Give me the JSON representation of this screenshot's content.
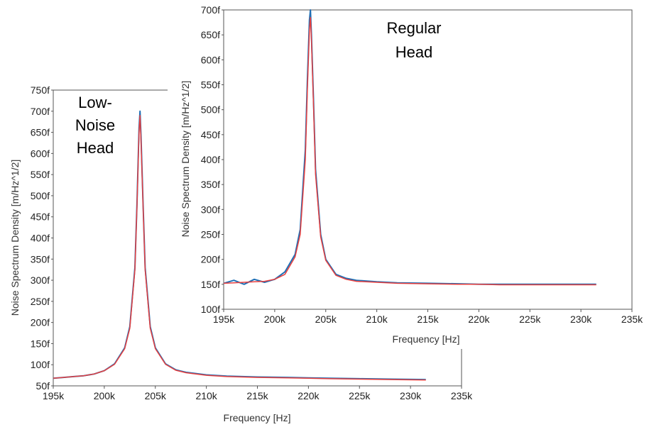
{
  "chart_data": [
    {
      "type": "line",
      "annotation": [
        "Low-",
        "Noise",
        "Head"
      ],
      "xlabel": "Frequency [Hz]",
      "ylabel": "Noise Spectrum Density [m/Hz^1/2]",
      "xlim": [
        195000,
        235000
      ],
      "ylim": [
        50,
        750
      ],
      "x_ticks": [
        "195k",
        "200k",
        "205k",
        "210k",
        "215k",
        "220k",
        "225k",
        "230k",
        "235k"
      ],
      "y_ticks": [
        "50f",
        "100f",
        "150f",
        "200f",
        "250f",
        "300f",
        "350f",
        "400f",
        "450f",
        "500f",
        "550f",
        "600f",
        "650f",
        "700f",
        "750f"
      ],
      "series": [
        {
          "color": "#1f6fb5",
          "x": [
            195000,
            196000,
            197000,
            198000,
            199000,
            200000,
            201000,
            202000,
            202500,
            203000,
            203200,
            203400,
            203500,
            203600,
            203800,
            204000,
            204500,
            205000,
            206000,
            207000,
            208000,
            210000,
            212000,
            215000,
            218000,
            220000,
            222000,
            225000,
            228000,
            231500
          ],
          "y": [
            68,
            70,
            72,
            74,
            78,
            86,
            102,
            140,
            190,
            330,
            480,
            660,
            700,
            640,
            480,
            330,
            190,
            140,
            102,
            88,
            82,
            76,
            73,
            71,
            70,
            69,
            68,
            67,
            66,
            65
          ]
        },
        {
          "color": "#e8403f",
          "x": [
            195000,
            196000,
            197000,
            198000,
            199000,
            200000,
            201000,
            202000,
            202500,
            203000,
            203200,
            203400,
            203500,
            203600,
            203800,
            204000,
            204500,
            205000,
            206000,
            207000,
            208000,
            210000,
            212000,
            215000,
            218000,
            220000,
            222000,
            225000,
            228000,
            231500
          ],
          "y": [
            68,
            70,
            72,
            74,
            78,
            86,
            101,
            138,
            186,
            325,
            475,
            650,
            690,
            630,
            475,
            325,
            186,
            138,
            101,
            87,
            81,
            75,
            72,
            70,
            69,
            68,
            67,
            66,
            65,
            64
          ]
        }
      ]
    },
    {
      "type": "line",
      "annotation": [
        "Regular",
        "Head"
      ],
      "xlabel": "Frequency [Hz]",
      "ylabel": "Noise Spectrum Density [m/Hz^1/2]",
      "xlim": [
        195000,
        235000
      ],
      "ylim": [
        100,
        700
      ],
      "x_ticks": [
        "195k",
        "200k",
        "205k",
        "210k",
        "215k",
        "220k",
        "225k",
        "230k",
        "235k"
      ],
      "y_ticks": [
        "100f",
        "150f",
        "200f",
        "250f",
        "300f",
        "350f",
        "400f",
        "450f",
        "500f",
        "550f",
        "600f",
        "650f",
        "700f"
      ],
      "series": [
        {
          "color": "#1f6fb5",
          "x": [
            195000,
            196000,
            197000,
            198000,
            199000,
            200000,
            201000,
            202000,
            202500,
            203000,
            203200,
            203400,
            203500,
            203600,
            203800,
            204000,
            204500,
            205000,
            206000,
            207000,
            208000,
            210000,
            212000,
            215000,
            218000,
            220000,
            222000,
            225000,
            228000,
            231500
          ],
          "y": [
            152,
            158,
            150,
            160,
            154,
            160,
            175,
            210,
            260,
            420,
            560,
            680,
            700,
            650,
            520,
            380,
            250,
            200,
            170,
            162,
            158,
            155,
            153,
            152,
            151,
            150,
            150,
            150,
            150,
            150
          ]
        },
        {
          "color": "#e8403f",
          "x": [
            195000,
            196000,
            197000,
            198000,
            199000,
            200000,
            201000,
            202000,
            202500,
            203000,
            203200,
            203400,
            203500,
            203600,
            203800,
            204000,
            204500,
            205000,
            206000,
            207000,
            208000,
            210000,
            212000,
            215000,
            218000,
            220000,
            222000,
            225000,
            228000,
            231500
          ],
          "y": [
            152,
            153,
            154,
            155,
            156,
            160,
            170,
            205,
            250,
            400,
            540,
            660,
            685,
            640,
            510,
            370,
            245,
            198,
            168,
            160,
            156,
            154,
            152,
            151,
            150,
            150,
            149,
            149,
            149,
            149
          ]
        }
      ]
    }
  ]
}
